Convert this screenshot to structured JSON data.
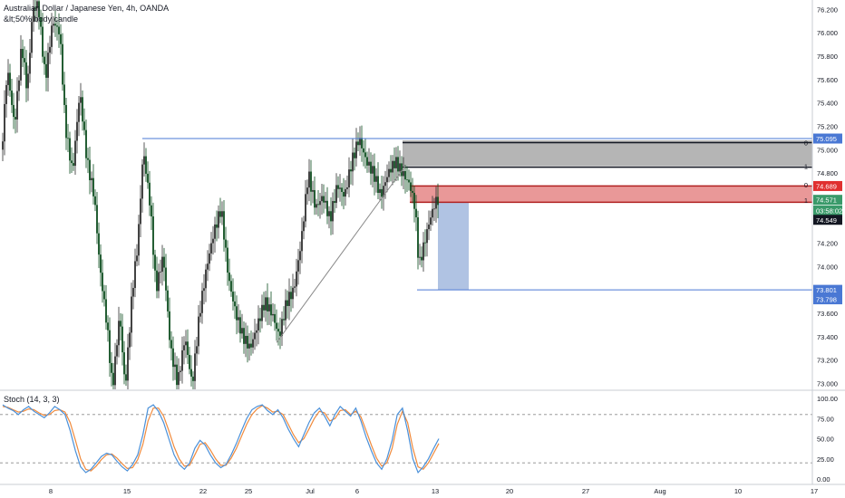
{
  "header": {
    "title": "Australian Dollar / Japanese Yen, 4h, OANDA",
    "subtitle": "&lt;50% body candle"
  },
  "stoch_label": "Stoch (14, 3, 3)",
  "colors": {
    "up": "#2f2f2f",
    "down": "#0d4d1f",
    "blue_line": "#4a78d4",
    "supply_zone": "#a8a8a8",
    "entry_zone": "#e06c6c",
    "target_zone": "#a7bde0",
    "stoch_k": "#4a90d9",
    "stoch_d": "#f08a3c",
    "tag_red": "#e03030",
    "tag_blue": "#4a78d4",
    "tag_green": "#3a9a6a",
    "tag_black": "#131722"
  },
  "chart_data": {
    "type": "candlestick",
    "title": "Australian Dollar / Japanese Yen, 4h, OANDA",
    "price_axis": {
      "ticks": [
        "76.200",
        "76.000",
        "75.800",
        "75.600",
        "75.400",
        "75.200",
        "75.000",
        "74.800",
        "74.200",
        "74.000",
        "73.600",
        "73.400",
        "73.200",
        "73.000"
      ],
      "range": [
        72.95,
        76.28
      ]
    },
    "time_axis": {
      "labels": [
        "8",
        "15",
        "22",
        "25",
        "Jul",
        "6",
        "13",
        "20",
        "27",
        "Aug",
        "10",
        "17"
      ]
    },
    "price_tags": [
      {
        "label": "75.095",
        "value": 75.095,
        "color": "blue"
      },
      {
        "label": "74.689",
        "value": 74.689,
        "color": "red"
      },
      {
        "label": "74.571",
        "value": 74.571,
        "color": "green"
      },
      {
        "label": "03:58:02",
        "value": 74.48,
        "color": "green"
      },
      {
        "label": "74.549",
        "value": 74.4,
        "color": "black"
      },
      {
        "label": "73.801",
        "value": 73.801,
        "color": "blue"
      },
      {
        "label": "73.798",
        "value": 73.72,
        "color": "blue"
      }
    ],
    "zones": [
      {
        "name": "supply",
        "from": 74.86,
        "to": 75.08
      },
      {
        "name": "entry",
        "from": 74.55,
        "to": 74.69
      },
      {
        "name": "target",
        "from": 73.8,
        "to": 74.55
      }
    ],
    "horizontal_lines": [
      {
        "name": "resistance",
        "value": 75.095
      },
      {
        "name": "target",
        "value": 73.801
      }
    ],
    "fib_labels": [
      "0",
      "1",
      "0",
      "1"
    ],
    "stochastic": {
      "label": "Stoch (14, 3, 3)",
      "levels": [
        80,
        20
      ],
      "ticks": [
        "100.00",
        "75.00",
        "50.00",
        "25.00",
        "0.00"
      ],
      "k": [
        92,
        88,
        85,
        80,
        86,
        90,
        84,
        80,
        76,
        82,
        90,
        86,
        80,
        60,
        35,
        15,
        8,
        12,
        20,
        28,
        32,
        30,
        22,
        15,
        10,
        18,
        30,
        55,
        88,
        92,
        84,
        70,
        50,
        30,
        18,
        12,
        20,
        38,
        48,
        42,
        30,
        20,
        14,
        18,
        30,
        44,
        60,
        75,
        86,
        90,
        92,
        85,
        80,
        86,
        76,
        62,
        50,
        40,
        55,
        70,
        82,
        88,
        78,
        66,
        80,
        90,
        84,
        78,
        88,
        72,
        52,
        35,
        20,
        12,
        25,
        48,
        80,
        88,
        60,
        25,
        8,
        15,
        25,
        38,
        50
      ],
      "d": [
        90,
        89,
        86,
        83,
        84,
        87,
        86,
        82,
        79,
        80,
        85,
        86,
        83,
        70,
        48,
        25,
        12,
        10,
        16,
        24,
        30,
        31,
        26,
        19,
        13,
        14,
        24,
        43,
        72,
        88,
        88,
        78,
        60,
        40,
        25,
        16,
        17,
        30,
        43,
        45,
        36,
        25,
        17,
        17,
        26,
        38,
        53,
        68,
        80,
        87,
        91,
        88,
        83,
        84,
        80,
        68,
        55,
        45,
        50,
        62,
        75,
        84,
        82,
        72,
        75,
        85,
        86,
        80,
        84,
        77,
        60,
        42,
        26,
        16,
        20,
        38,
        68,
        84,
        70,
        38,
        15,
        12,
        20,
        32,
        44
      ]
    }
  }
}
